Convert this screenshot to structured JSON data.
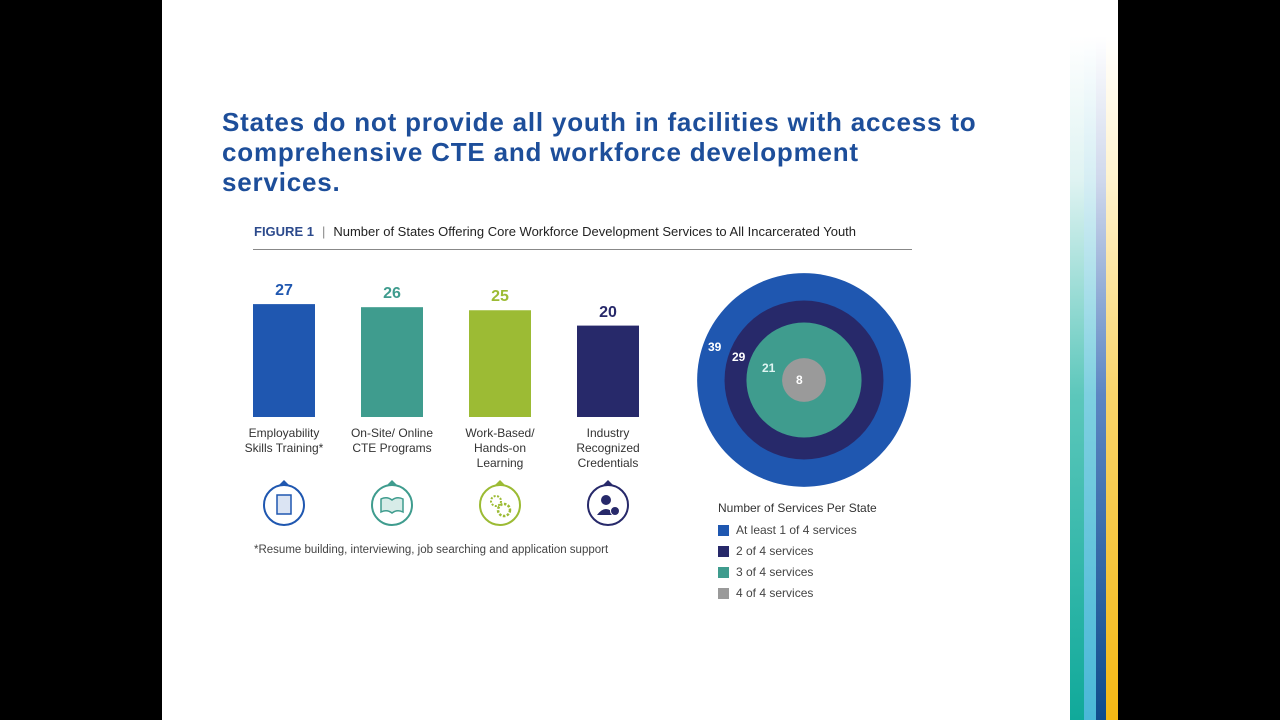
{
  "slide_title": "States do not provide all youth in facilities with access to comprehensive CTE and workforce development services.",
  "figure_label": "FIGURE 1",
  "figure_title": "Number of States Offering Core Workforce Development Services to All Incarcerated Youth",
  "footnote": "*Resume building, interviewing, job searching and application support",
  "chart_data": [
    {
      "type": "bar",
      "categories": [
        "Employability Skills Training*",
        "On-Site/ Online CTE Programs",
        "Work-Based/ Hands-on Learning",
        "Industry Recognized Credentials"
      ],
      "values": [
        27,
        26,
        25,
        20
      ],
      "colors": [
        "#1f57b0",
        "#3f9c8e",
        "#9cbb34",
        "#27296a"
      ],
      "icons": [
        "document-icon",
        "book-icon",
        "gears-icon",
        "person-check-icon"
      ],
      "data_labels": [
        "27",
        "26",
        "25",
        "20"
      ]
    },
    {
      "type": "nested-circles",
      "legend_title": "Number of Services Per State",
      "series": [
        {
          "name": "At least 1 of 4 services",
          "value": 39,
          "label": "39",
          "color": "#1f57b0"
        },
        {
          "name": "2 of 4 services",
          "value": 29,
          "label": "29",
          "color": "#27296a"
        },
        {
          "name": "3 of 4 services",
          "value": 21,
          "label": "21",
          "color": "#3f9c8e"
        },
        {
          "name": "4 of 4 services",
          "value": 8,
          "label": "8",
          "color": "#9a9a9a"
        }
      ]
    }
  ]
}
